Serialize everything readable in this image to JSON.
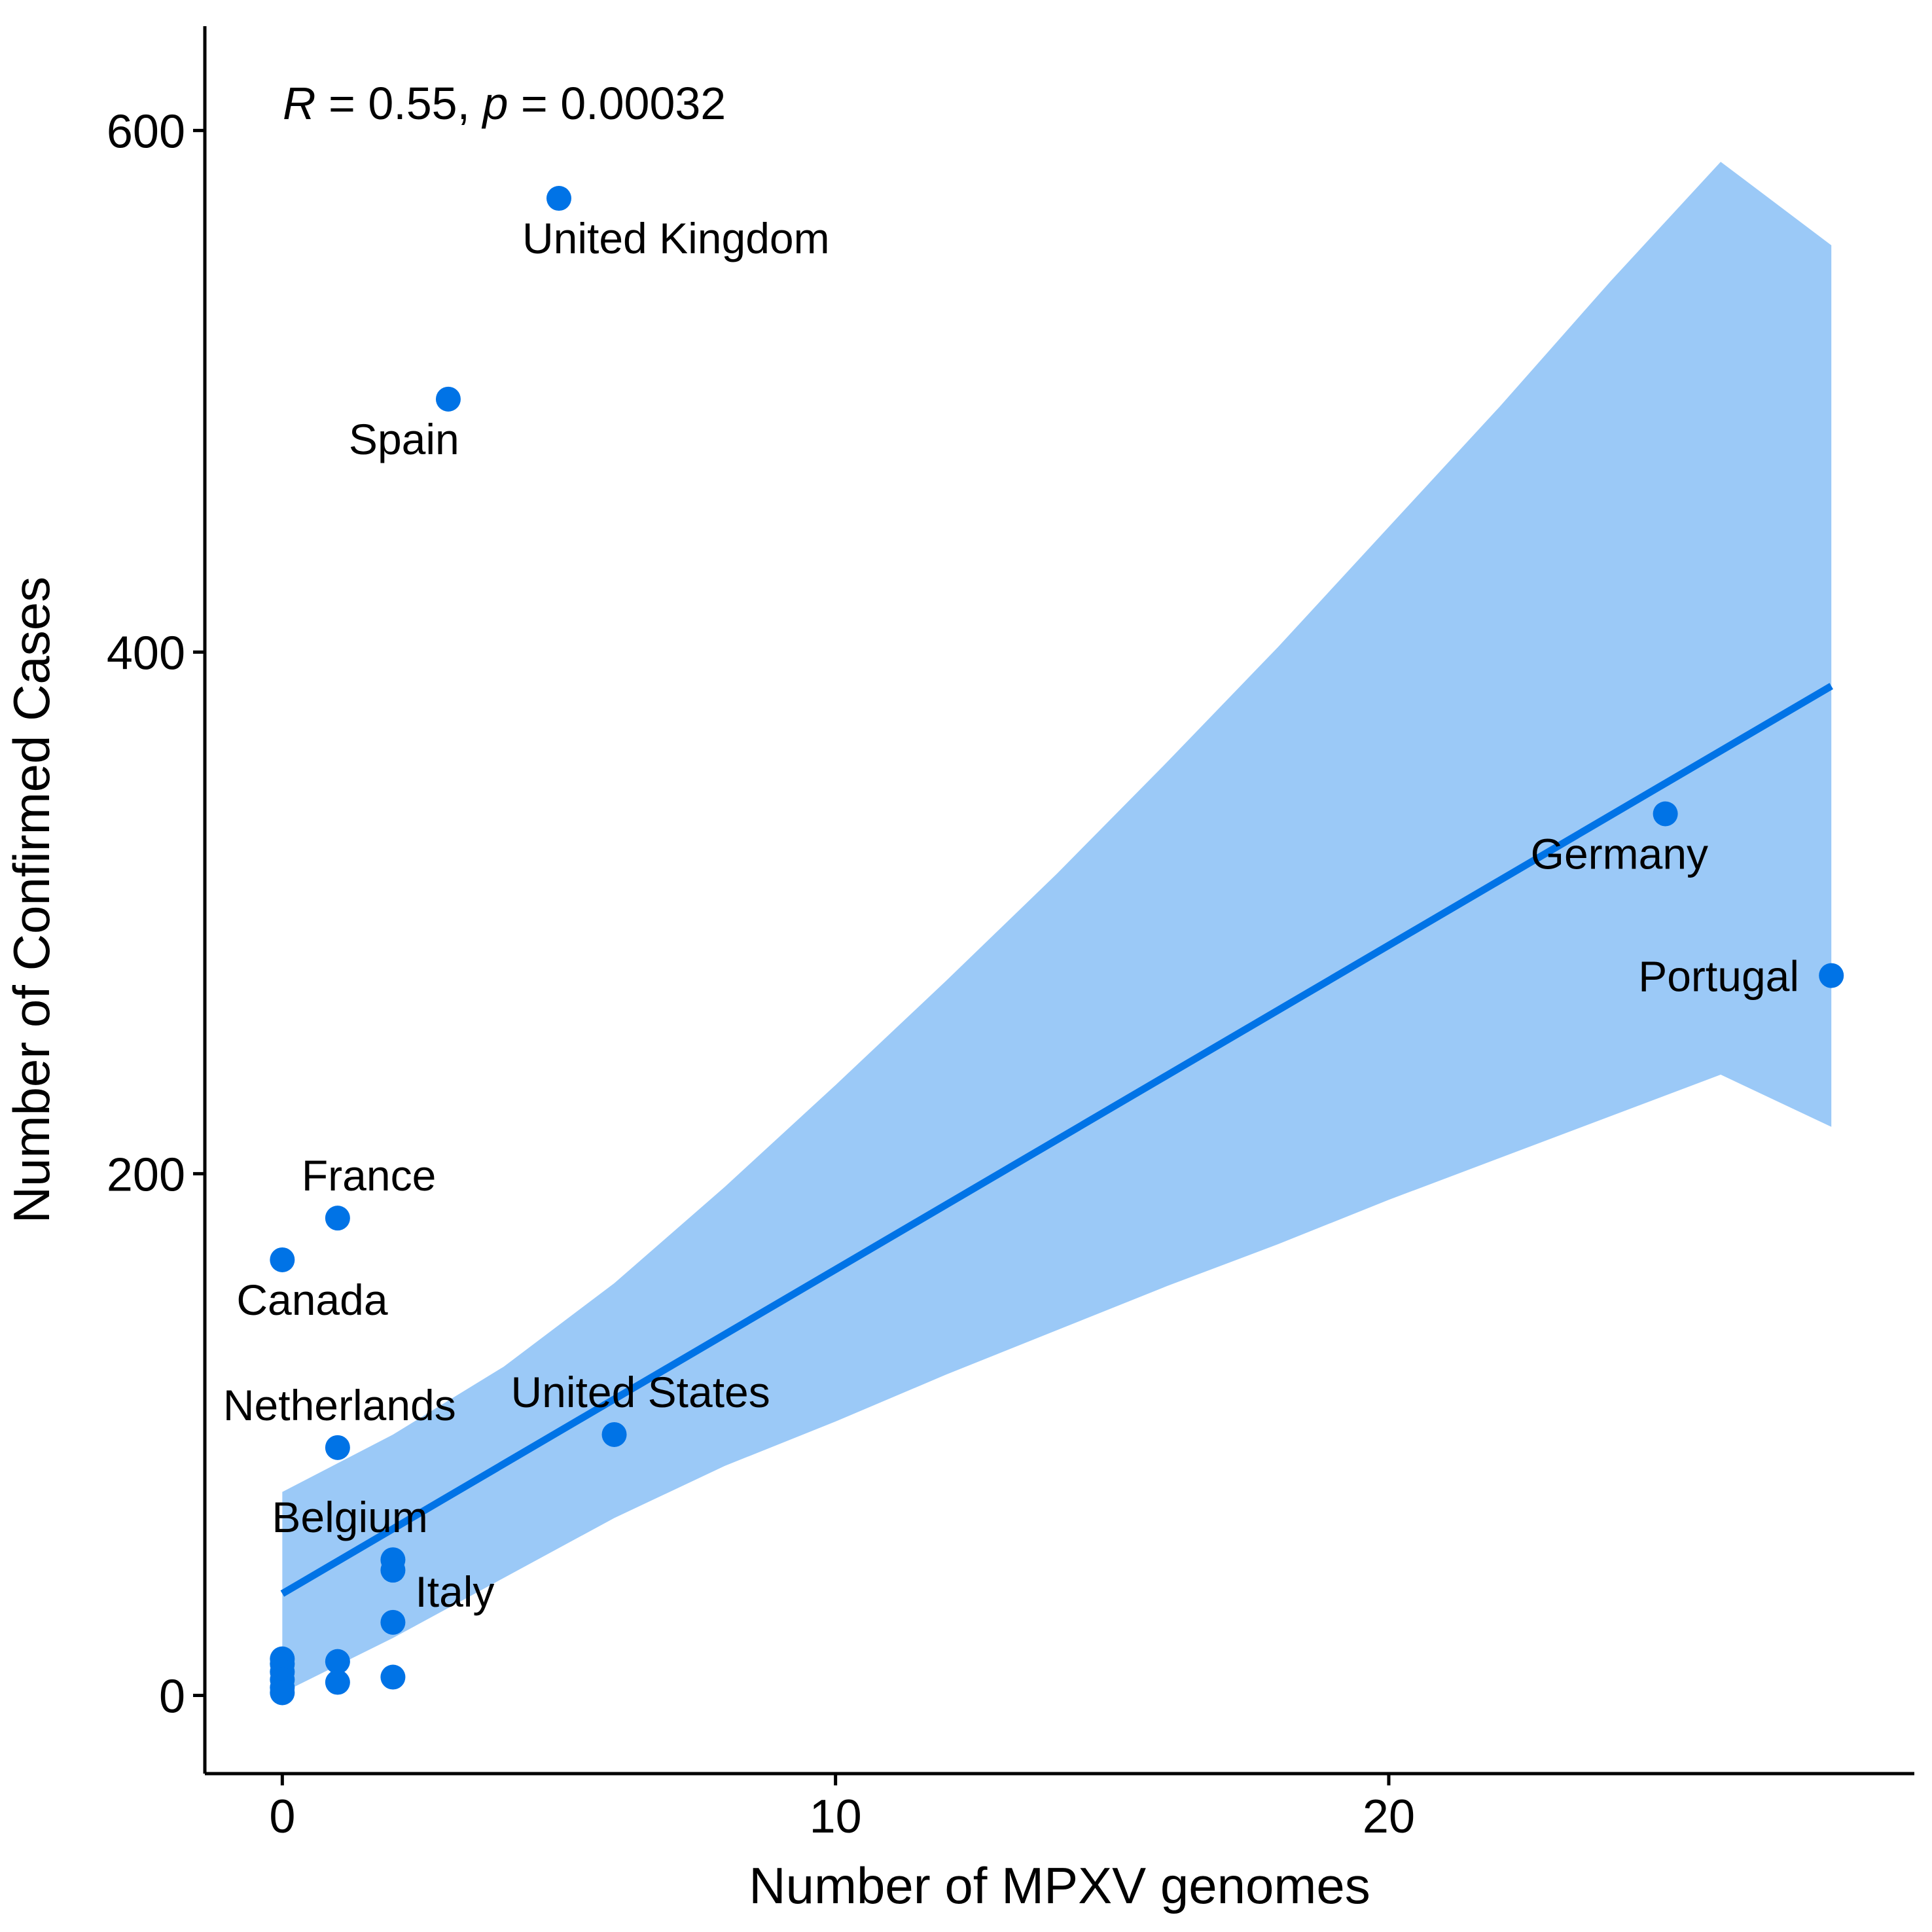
{
  "chart_data": {
    "type": "scatter",
    "title": "",
    "xlabel": "Number of MPXV genomes",
    "ylabel": "Number of Confirmed Cases",
    "xlim": [
      -1.4,
      29.5
    ],
    "ylim": [
      -30,
      640
    ],
    "x_ticks": [
      0,
      10,
      20
    ],
    "y_ticks": [
      0,
      200,
      400,
      600
    ],
    "grid": false,
    "legend": "none",
    "colors": {
      "points": "#0073E6",
      "fit_line": "#0073E6",
      "confidence_band": "#9BC9F7",
      "axis": "#000000"
    },
    "annotation": {
      "r_symbol": "R",
      "r_text": " = 0.55, ",
      "p_symbol": "p",
      "p_text": " = 0.00032"
    },
    "points": [
      {
        "x": 5,
        "y": 574,
        "label": "United Kingdom"
      },
      {
        "x": 3,
        "y": 497,
        "label": "Spain"
      },
      {
        "x": 25,
        "y": 338,
        "label": "Germany"
      },
      {
        "x": 28,
        "y": 276,
        "label": "Portugal"
      },
      {
        "x": 1,
        "y": 183,
        "label": "France"
      },
      {
        "x": 0,
        "y": 167,
        "label": "Canada"
      },
      {
        "x": 1,
        "y": 95,
        "label": "Netherlands"
      },
      {
        "x": 6,
        "y": 100,
        "label": "United States"
      },
      {
        "x": 2,
        "y": 52,
        "label": "Belgium"
      },
      {
        "x": 2,
        "y": 48,
        "label": ""
      },
      {
        "x": 2,
        "y": 28,
        "label": "Italy"
      },
      {
        "x": 1,
        "y": 13,
        "label": ""
      },
      {
        "x": 2,
        "y": 7,
        "label": ""
      },
      {
        "x": 1,
        "y": 5,
        "label": ""
      },
      {
        "x": 0,
        "y": 14,
        "label": ""
      },
      {
        "x": 0,
        "y": 12,
        "label": ""
      },
      {
        "x": 0,
        "y": 9,
        "label": ""
      },
      {
        "x": 0,
        "y": 6,
        "label": ""
      },
      {
        "x": 0,
        "y": 3,
        "label": ""
      },
      {
        "x": 0,
        "y": 1,
        "label": ""
      }
    ],
    "fit_line": {
      "x": [
        0,
        28
      ],
      "y": [
        39,
        387
      ]
    },
    "confidence_band": {
      "x": [
        0,
        2,
        4,
        6,
        8,
        10,
        12,
        14,
        16,
        18,
        20,
        22,
        24,
        26,
        28
      ],
      "upper": [
        78,
        100,
        126,
        158,
        195,
        234,
        274,
        315,
        358,
        402,
        448,
        494,
        542,
        588,
        556
      ],
      "lower": [
        1,
        22,
        45,
        68,
        88,
        105,
        123,
        140,
        157,
        173,
        190,
        206,
        222,
        238,
        218
      ]
    }
  }
}
